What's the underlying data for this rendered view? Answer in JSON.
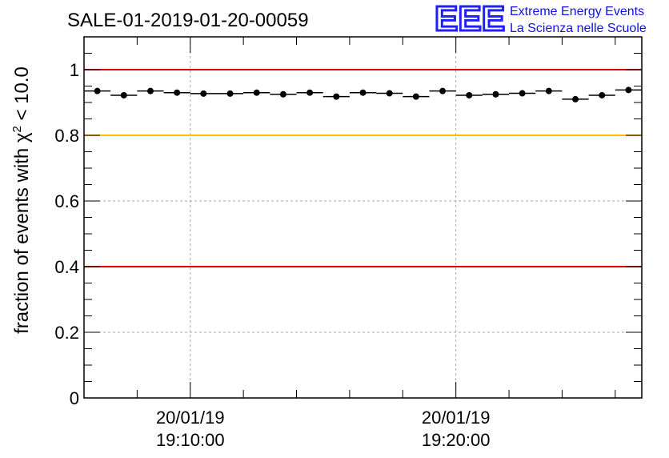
{
  "chart_data": {
    "type": "scatter",
    "title": "SALE-01-2019-01-20-00059",
    "ylabel_prefix": "fraction of events with ",
    "ylabel_symbol": "χ",
    "ylabel_superscript": "2",
    "ylabel_suffix": " < 10.0",
    "ylim": [
      0,
      1.1
    ],
    "y_ticks": [
      0,
      0.2,
      0.4,
      0.6,
      0.8,
      1
    ],
    "y_tick_labels": [
      "0",
      "0.2",
      "0.4",
      "0.6",
      "0.8",
      "1"
    ],
    "x_ticks": [
      {
        "date": "20/01/19",
        "time": "19:10:00",
        "position": 4
      },
      {
        "date": "20/01/19",
        "time": "19:20:00",
        "position": 14
      }
    ],
    "x_range": [
      0,
      21
    ],
    "values": [
      0.935,
      0.922,
      0.935,
      0.93,
      0.927,
      0.927,
      0.93,
      0.925,
      0.93,
      0.918,
      0.93,
      0.928,
      0.918,
      0.935,
      0.922,
      0.925,
      0.928,
      0.935,
      0.91,
      0.922,
      0.938
    ],
    "errors": [
      0.004,
      0.004,
      0.004,
      0.004,
      0.004,
      0.004,
      0.004,
      0.004,
      0.004,
      0.004,
      0.004,
      0.004,
      0.004,
      0.004,
      0.004,
      0.004,
      0.004,
      0.004,
      0.004,
      0.004,
      0.004
    ],
    "reference_lines": [
      {
        "value": 1.0,
        "color": "#e00000"
      },
      {
        "value": 0.8,
        "color": "#ffc000"
      },
      {
        "value": 0.4,
        "color": "#e00000"
      }
    ],
    "grid": true
  },
  "logo": {
    "letters": "EEE",
    "line1": "Extreme Energy Events",
    "line2": "La Scienza nelle Scuole",
    "color": "#1010ee"
  }
}
